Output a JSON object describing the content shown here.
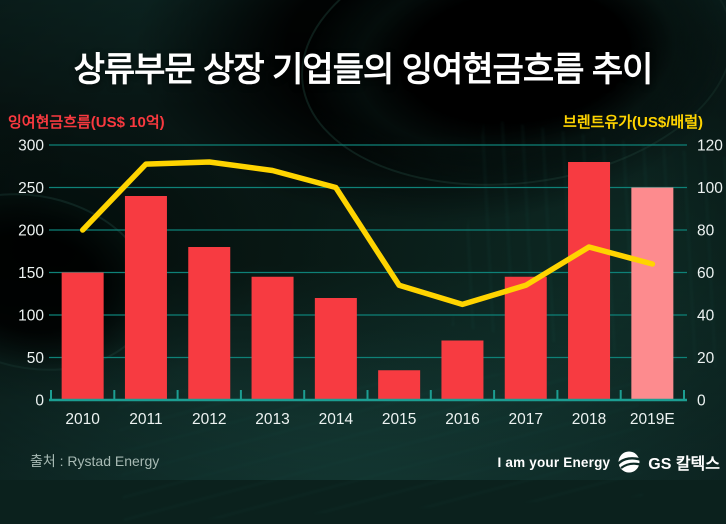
{
  "title": "상류부문 상장 기업들의 잉여현금흐름 추이",
  "left_axis": {
    "label": "잉여현금흐름(US$ 10억)",
    "color": "#f8393f"
  },
  "right_axis": {
    "label": "브렌트유가(US$/배럴)",
    "color": "#ffd400"
  },
  "footer": {
    "source": "출처 : Rystad Energy",
    "brand_slogan": "I am your Energy",
    "brand_name": "GS 칼텍스"
  },
  "chart_data": {
    "type": "bar",
    "categories": [
      "2010",
      "2011",
      "2012",
      "2013",
      "2014",
      "2015",
      "2016",
      "2017",
      "2018",
      "2019E"
    ],
    "series": [
      {
        "name": "잉여현금흐름",
        "type": "bar",
        "axis": "left",
        "values": [
          150,
          240,
          180,
          145,
          120,
          35,
          70,
          145,
          280,
          250
        ],
        "color": "#f73b41",
        "estimate_index": 9,
        "estimate_color": "#fd8b8e"
      },
      {
        "name": "브렌트유가",
        "type": "line",
        "axis": "right",
        "values": [
          80,
          111,
          112,
          108,
          100,
          54,
          45,
          54,
          72,
          64
        ],
        "color": "#ffd400"
      }
    ],
    "left_ylim": [
      0,
      300
    ],
    "left_ticks": [
      0,
      50,
      100,
      150,
      200,
      250,
      300
    ],
    "right_ylim": [
      0,
      120
    ],
    "right_ticks": [
      0,
      20,
      40,
      60,
      80,
      100,
      120
    ],
    "grid": true,
    "grid_color": "#0e8177",
    "axis_color": "#1c9e92",
    "tick_label_color": "#edf3f2",
    "legend_position": "none"
  }
}
